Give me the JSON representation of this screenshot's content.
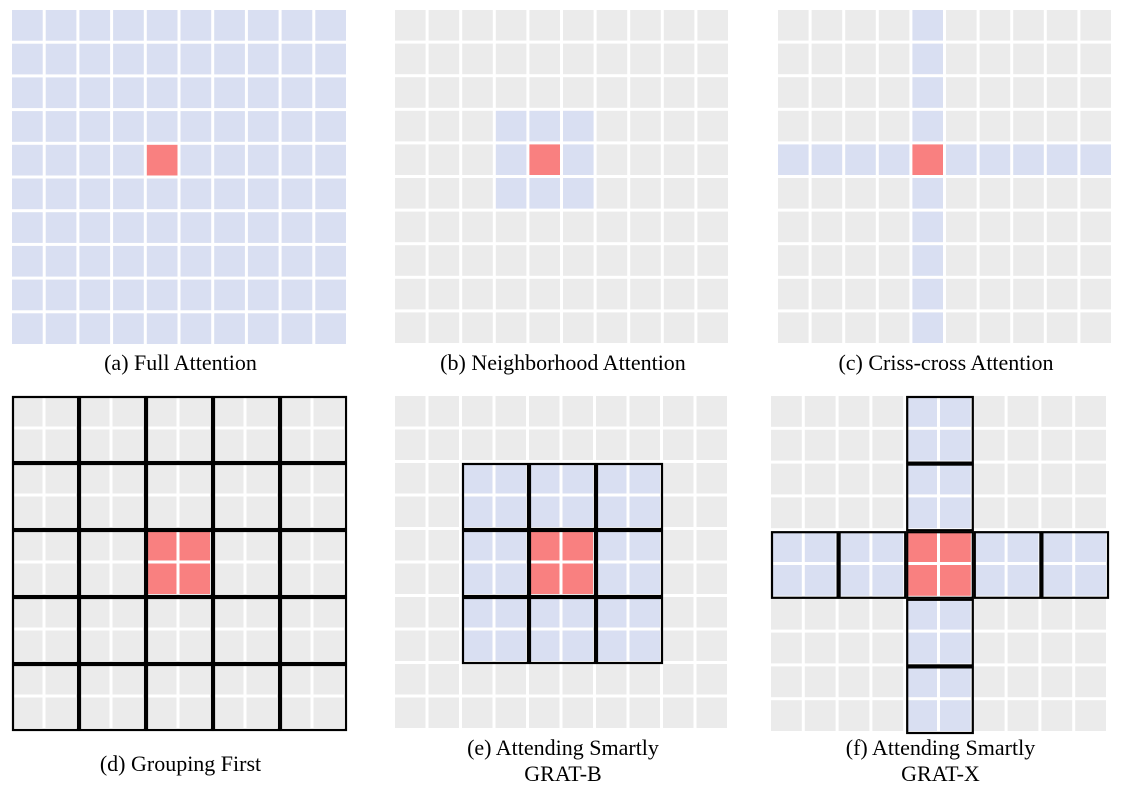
{
  "colors": {
    "background_cell": "#ebebeb",
    "attended_cell": "#d9dff2",
    "query_cell": "#f98080",
    "cell_gap": "#ffffff",
    "group_border": "#000000"
  },
  "panels": [
    {
      "id": "a",
      "caption_lines": [
        "(a) Full Attention"
      ],
      "attention": "full",
      "grid_size": 10,
      "query_cell": [
        4,
        4
      ],
      "groups": false
    },
    {
      "id": "b",
      "caption_lines": [
        "(b) Neighborhood Attention"
      ],
      "attention": "neighborhood",
      "grid_size": 10,
      "query_cell": [
        4,
        4
      ],
      "neighborhood_radius": 1,
      "groups": false
    },
    {
      "id": "c",
      "caption_lines": [
        "(c) Criss-cross Attention"
      ],
      "attention": "criss-cross",
      "grid_size": 10,
      "query_cell": [
        4,
        4
      ],
      "groups": false
    },
    {
      "id": "d",
      "caption_lines": [
        "(d) Grouping First"
      ],
      "attention": "grouping",
      "grid_size": 10,
      "group_size": 2,
      "query_group": [
        2,
        2
      ],
      "groups": true
    },
    {
      "id": "e",
      "caption_lines": [
        "(e) Attending Smartly",
        "GRAT-B"
      ],
      "attention": "grouped-neighborhood",
      "grid_size": 10,
      "group_size": 2,
      "query_group": [
        2,
        2
      ],
      "groups": true
    },
    {
      "id": "f",
      "caption_lines": [
        "(f) Attending Smartly",
        "GRAT-X"
      ],
      "attention": "grouped-criss-cross",
      "grid_size": 10,
      "group_size": 2,
      "query_group": [
        2,
        2
      ],
      "groups": true
    }
  ]
}
